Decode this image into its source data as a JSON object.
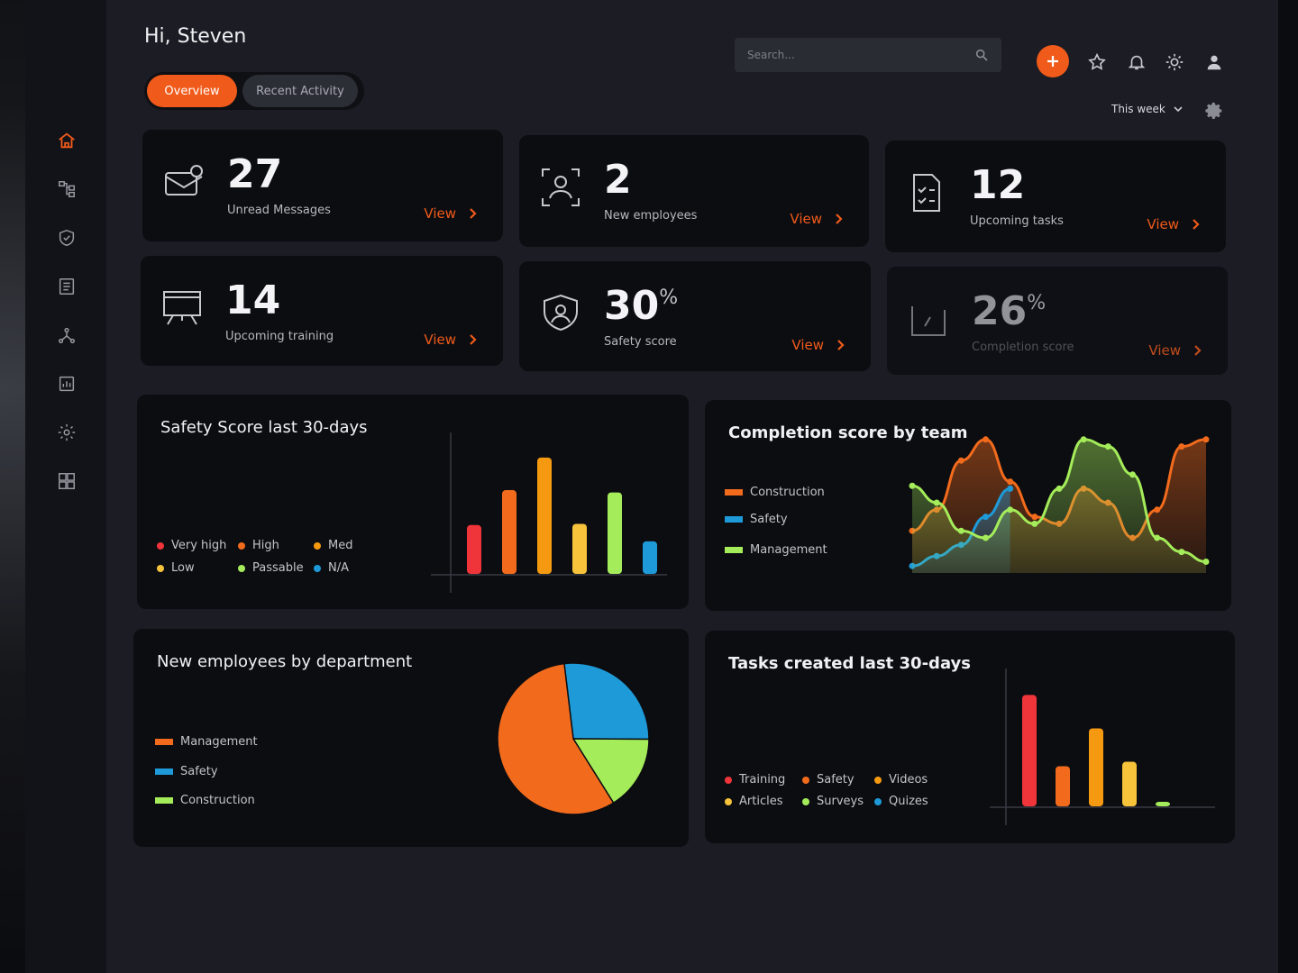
{
  "header": {
    "greeting": "Hi, Steven",
    "search_placeholder": "Search...",
    "period": "This week"
  },
  "tabs": [
    {
      "label": "Overview",
      "active": true
    },
    {
      "label": "Recent Activity",
      "active": false
    }
  ],
  "sidebar": {
    "items": [
      {
        "icon": "home-icon",
        "active": true
      },
      {
        "icon": "hierarchy-icon"
      },
      {
        "icon": "shield-icon"
      },
      {
        "icon": "document-icon"
      },
      {
        "icon": "network-icon"
      },
      {
        "icon": "report-icon"
      },
      {
        "icon": "gear-icon"
      },
      {
        "icon": "dashboard-icon"
      }
    ]
  },
  "colors": {
    "accent": "#f05a1a",
    "red": "#f0353a",
    "orange": "#f26b1d",
    "amber": "#f59a10",
    "yellow": "#f6c33a",
    "green": "#a4ec5a",
    "blue": "#1e9ad8"
  },
  "stats": [
    {
      "value": "27",
      "label": "Unread Messages",
      "link": "View",
      "icon": "messages-icon"
    },
    {
      "value": "2",
      "label": "New employees",
      "link": "View",
      "icon": "employee-icon"
    },
    {
      "value": "12",
      "label": "Upcoming tasks",
      "link": "View",
      "icon": "tasks-icon"
    },
    {
      "value": "14",
      "label": "Upcoming training",
      "link": "View",
      "icon": "training-icon"
    },
    {
      "value": "30",
      "unit": "%",
      "label": "Safety score",
      "link": "View",
      "icon": "safety-icon"
    },
    {
      "value": "26",
      "unit": "%",
      "label": "Completion score",
      "link": "View",
      "icon": "completion-icon"
    }
  ],
  "chart_data": [
    {
      "type": "bar",
      "title": "Safety Score last 30-days",
      "categories": [
        "Very high",
        "High",
        "Med",
        "Low",
        "Passable",
        "N/A"
      ],
      "values": [
        42,
        72,
        100,
        43,
        70,
        28
      ],
      "colors": [
        "#f0353a",
        "#f26b1d",
        "#f59a10",
        "#f6c33a",
        "#a4ec5a",
        "#1e9ad8"
      ],
      "legend": [
        {
          "label": "Very high",
          "color": "#f0353a"
        },
        {
          "label": "High",
          "color": "#f26b1d"
        },
        {
          "label": "Med",
          "color": "#f59a10"
        },
        {
          "label": "Low",
          "color": "#f6c33a"
        },
        {
          "label": "Passable",
          "color": "#a4ec5a"
        },
        {
          "label": "N/A",
          "color": "#1e9ad8"
        }
      ],
      "ylim": [
        0,
        110
      ]
    },
    {
      "type": "area",
      "title": "Completion score by team",
      "x": [
        0,
        1,
        2,
        3,
        4,
        5,
        6,
        7,
        8,
        9,
        10,
        11,
        12
      ],
      "series": [
        {
          "name": "Construction",
          "color": "#f26b1d",
          "values": [
            30,
            45,
            80,
            95,
            65,
            40,
            35,
            60,
            50,
            25,
            45,
            90,
            95
          ]
        },
        {
          "name": "Safety",
          "color": "#1e9ad8",
          "values": [
            5,
            12,
            20,
            40,
            60,
            null,
            null,
            null,
            null,
            null,
            null,
            null,
            null
          ]
        },
        {
          "name": "Management",
          "color": "#a4ec5a",
          "values": [
            62,
            50,
            30,
            25,
            45,
            35,
            60,
            95,
            90,
            70,
            25,
            15,
            8
          ]
        }
      ],
      "legend": [
        {
          "label": "Construction",
          "color": "#f26b1d"
        },
        {
          "label": "Safety",
          "color": "#1e9ad8"
        },
        {
          "label": "Management",
          "color": "#a4ec5a"
        }
      ],
      "ylim": [
        0,
        100
      ]
    },
    {
      "type": "pie",
      "title": "New employees by department",
      "categories": [
        "Safety",
        "Construction",
        "Management"
      ],
      "values": [
        27,
        16,
        57
      ],
      "colors": [
        "#1e9ad8",
        "#a4ec5a",
        "#f26b1d"
      ],
      "legend": [
        {
          "label": "Management",
          "color": "#f26b1d"
        },
        {
          "label": "Safety",
          "color": "#1e9ad8"
        },
        {
          "label": "Construction",
          "color": "#a4ec5a"
        }
      ]
    },
    {
      "type": "bar",
      "title": "Tasks created last 30-days",
      "categories": [
        "Training",
        "Safety",
        "Videos",
        "Articles",
        "Surveys",
        "Quizes"
      ],
      "values": [
        100,
        36,
        70,
        40,
        4,
        0
      ],
      "colors": [
        "#f0353a",
        "#f26b1d",
        "#f59a10",
        "#f6c33a",
        "#a4ec5a",
        "#1e9ad8"
      ],
      "legend": [
        {
          "label": "Training",
          "color": "#f0353a"
        },
        {
          "label": "Safety",
          "color": "#f26b1d"
        },
        {
          "label": "Videos",
          "color": "#f59a10"
        },
        {
          "label": "Articles",
          "color": "#f6c33a"
        },
        {
          "label": "Surveys",
          "color": "#a4ec5a"
        },
        {
          "label": "Quizes",
          "color": "#1e9ad8"
        }
      ],
      "ylim": [
        0,
        110
      ]
    }
  ]
}
